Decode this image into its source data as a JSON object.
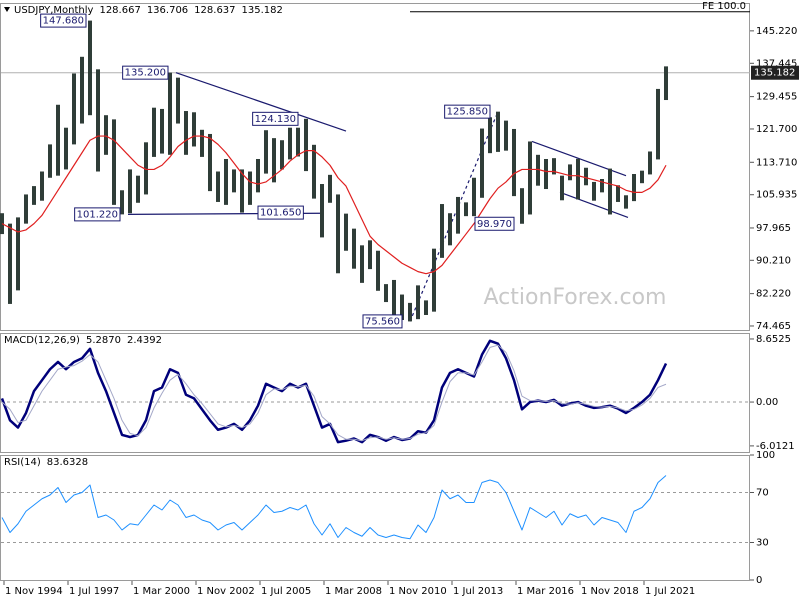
{
  "chart_data": [
    {
      "type": "range-bar",
      "title": "USDJPY,Monthly",
      "header_values": [
        128.667,
        136.706,
        128.637,
        135.182
      ],
      "x": [
        "1994-10",
        "1995-02",
        "1995-06",
        "1995-10",
        "1996-02",
        "1996-06",
        "1996-10",
        "1997-02",
        "1997-06",
        "1997-10",
        "1998-02",
        "1998-06",
        "1998-10",
        "1999-02",
        "1999-06",
        "1999-10",
        "2000-02",
        "2000-06",
        "2000-10",
        "2001-02",
        "2001-06",
        "2001-10",
        "2002-02",
        "2002-06",
        "2002-10",
        "2003-02",
        "2003-06",
        "2003-10",
        "2004-02",
        "2004-06",
        "2004-10",
        "2005-02",
        "2005-06",
        "2005-10",
        "2006-02",
        "2006-06",
        "2006-10",
        "2007-02",
        "2007-06",
        "2007-10",
        "2008-02",
        "2008-06",
        "2008-10",
        "2009-02",
        "2009-06",
        "2009-10",
        "2010-02",
        "2010-06",
        "2010-10",
        "2011-02",
        "2011-06",
        "2011-10",
        "2012-02",
        "2012-06",
        "2012-10",
        "2013-02",
        "2013-06",
        "2013-10",
        "2014-02",
        "2014-06",
        "2014-10",
        "2015-02",
        "2015-06",
        "2015-10",
        "2016-02",
        "2016-06",
        "2016-10",
        "2017-02",
        "2017-06",
        "2017-10",
        "2018-02",
        "2018-06",
        "2018-10",
        "2019-02",
        "2019-06",
        "2019-10",
        "2020-02",
        "2020-06",
        "2020-10",
        "2021-02",
        "2021-06",
        "2021-10",
        "2022-02",
        "2022-06"
      ],
      "xlim": [
        "1994-09",
        "2025-12"
      ],
      "xticks": [
        {
          "value": "1994-11",
          "label": "1 Nov 1994"
        },
        {
          "value": "1997-07",
          "label": "1 Jul 1997"
        },
        {
          "value": "2000-03",
          "label": "1 Mar 2000"
        },
        {
          "value": "2002-11",
          "label": "1 Nov 2002"
        },
        {
          "value": "2005-07",
          "label": "1 Jul 2005"
        },
        {
          "value": "2008-03",
          "label": "1 Mar 2008"
        },
        {
          "value": "2010-11",
          "label": "1 Nov 2010"
        },
        {
          "value": "2013-07",
          "label": "1 Jul 2013"
        },
        {
          "value": "2016-03",
          "label": "1 Mar 2016"
        },
        {
          "value": "2018-11",
          "label": "1 Nov 2018"
        },
        {
          "value": "2021-07",
          "label": "1 Jul 2021"
        }
      ],
      "ylim": [
        73.5,
        151.9
      ],
      "yticks": [
        {
          "value": 145.22,
          "label": "145.220"
        },
        137.445,
        129.455,
        {
          "value": 121.7,
          "label": "121.700"
        },
        {
          "value": 113.71,
          "label": "113.710"
        },
        105.935,
        97.965,
        {
          "value": 90.21,
          "label": "90.210"
        },
        {
          "value": 82.22,
          "label": "82.220"
        },
        74.465
      ],
      "series": [
        {
          "type": "range",
          "color": "#2f3d38",
          "high": [
            101.5,
            99,
            100.5,
            106,
            108,
            111.5,
            118,
            127.5,
            122,
            135,
            139,
            147.68,
            136,
            125,
            124,
            107,
            112,
            110.5,
            118.5,
            126.8,
            126.5,
            135.2,
            134,
            126,
            125.7,
            121.5,
            120.5,
            111.5,
            114.5,
            112,
            112,
            111.5,
            114.5,
            121.4,
            119.5,
            119,
            122,
            122,
            124.13,
            117.9,
            108.5,
            110.7,
            106,
            101.4,
            97.8,
            93.8,
            95,
            92.5,
            84.5,
            85.5,
            82,
            80,
            84.2,
            80.6,
            93,
            103.7,
            101.5,
            105.4,
            104.1,
            110,
            121.8,
            124.5,
            125.85,
            123.7,
            121.7,
            107.5,
            118.7,
            115.5,
            114.5,
            114.7,
            110.5,
            113.2,
            114.55,
            112.4,
            109,
            109.7,
            112.2,
            108.2,
            105.8,
            110.9,
            111.7,
            116.3,
            131.3,
            136.706
          ],
          "low": [
            96.5,
            79.75,
            83,
            99,
            103.5,
            104.5,
            110,
            110.5,
            112,
            118,
            123,
            125,
            111.5,
            115.5,
            103.5,
            101.22,
            101.5,
            104,
            106,
            115,
            115.8,
            115.5,
            123,
            115.5,
            117.5,
            115,
            106.8,
            104.2,
            103.5,
            106.5,
            101.65,
            103.5,
            106.5,
            111,
            108.9,
            112,
            114.4,
            115.1,
            111.6,
            105,
            95.7,
            104,
            87.1,
            92.5,
            88.2,
            84.8,
            88.1,
            82.9,
            80.2,
            76.3,
            75.9,
            75.56,
            76.1,
            77.1,
            77.9,
            90.8,
            93.8,
            96.6,
            100.8,
            100.8,
            105.2,
            115.9,
            116.2,
            116.5,
            105.6,
            98.97,
            101.2,
            108.1,
            107.3,
            110.8,
            104.6,
            109.4,
            104.8,
            108.2,
            104.5,
            106.5,
            101.2,
            104.2,
            102.6,
            104.4,
            108.7,
            110.8,
            114.4,
            128.637
          ]
        },
        {
          "type": "line",
          "color": "#e02020",
          "values": [
            99,
            98,
            97,
            97.5,
            99,
            101,
            104,
            107,
            110,
            113,
            116,
            119,
            120,
            120,
            119,
            117,
            115,
            113,
            112,
            112,
            113,
            115,
            117.5,
            119,
            120,
            120,
            119.5,
            118,
            116,
            113.5,
            111,
            109,
            108.5,
            109,
            110.5,
            112,
            114,
            115.5,
            116.5,
            116.5,
            115,
            113,
            110,
            108,
            104,
            100,
            96,
            94,
            92.5,
            91,
            89.5,
            88.5,
            87.5,
            87,
            87.5,
            89,
            91.5,
            94,
            96.5,
            99,
            102,
            105,
            107.5,
            109,
            111,
            112,
            112,
            112,
            111.5,
            111.5,
            111,
            110.5,
            110.5,
            110,
            109.5,
            109,
            108.5,
            108,
            107,
            106.5,
            106.5,
            107.5,
            109.5,
            113
          ]
        }
      ],
      "last_price": 135.182,
      "fe_level": {
        "from": "2011-10",
        "value": 149.8,
        "label": "FE 100.0"
      },
      "annotations": [
        {
          "x": "1998-08",
          "value": 147.68,
          "label": "147.680",
          "side": "left"
        },
        {
          "x": "2002-01",
          "value": 135.2,
          "label": "135.200",
          "side": "left"
        },
        {
          "x": "2007-06",
          "value": 124.13,
          "label": "124.130",
          "side": "left"
        },
        {
          "x": "2015-06",
          "value": 125.85,
          "label": "125.850",
          "side": "left"
        },
        {
          "x": "2000-01",
          "value": 101.22,
          "label": "101.220",
          "side": "left"
        },
        {
          "x": "2005-01",
          "value": 101.65,
          "label": "101.650",
          "side": "right"
        },
        {
          "x": "2016-06",
          "value": 98.97,
          "label": "98.970",
          "side": "left"
        },
        {
          "x": "2011-10",
          "value": 75.56,
          "label": "75.560",
          "side": "left"
        }
      ],
      "trendlines": [
        {
          "from": [
            "2002-01",
            135.2
          ],
          "to": [
            "2009-02",
            121.2
          ],
          "color": "#1a1a6e",
          "dashed": false
        },
        {
          "from": [
            "2000-01",
            101.22
          ],
          "to": [
            "2008-02",
            101.5
          ],
          "color": "#1a1a6e",
          "dashed": false
        },
        {
          "from": [
            "2016-11",
            118.7
          ],
          "to": [
            "2020-10",
            110.5
          ],
          "color": "#1a1a6e",
          "dashed": false
        },
        {
          "from": [
            "2018-01",
            106.5
          ],
          "to": [
            "2020-11",
            100.5
          ],
          "color": "#1a1a6e",
          "dashed": false
        },
        {
          "from": [
            "2011-10",
            75.56
          ],
          "to": [
            "2015-06",
            125.85
          ],
          "color": "#1a1a6e",
          "dashed": true
        }
      ],
      "watermark": "ActionForex.com"
    },
    {
      "type": "line",
      "title": "MACD(12,26,9)",
      "header_values": [
        {
          "value": 5.287,
          "label": "5.2870"
        },
        2.4392
      ],
      "ylim": [
        -6.85,
        9.47
      ],
      "yticks": [
        8.6525,
        {
          "value": 0,
          "label": "0.00"
        },
        -6.0121
      ],
      "reference_lines": [
        0
      ],
      "series": [
        {
          "color": "#00007a",
          "line_width": 2.5,
          "values": [
            0.5,
            -2.5,
            -3.5,
            -1.5,
            1.5,
            3.0,
            4.5,
            5.5,
            4.5,
            5.5,
            6.0,
            7.3,
            4.0,
            1.5,
            -1.5,
            -4.5,
            -4.8,
            -4.5,
            -2.5,
            1.5,
            2.0,
            4.5,
            4.0,
            1.0,
            0.5,
            -1.0,
            -2.5,
            -3.8,
            -3.5,
            -3.0,
            -3.8,
            -2.5,
            -0.5,
            2.5,
            2.0,
            1.5,
            2.5,
            2.0,
            2.5,
            -0.5,
            -3.5,
            -3.0,
            -5.5,
            -5.3,
            -5.0,
            -5.5,
            -4.5,
            -4.8,
            -5.3,
            -4.8,
            -5.2,
            -5.0,
            -4.0,
            -4.2,
            -2.5,
            2.0,
            4.0,
            4.5,
            4.0,
            3.5,
            6.5,
            8.4,
            8.0,
            6.0,
            3.0,
            -1.0,
            0.0,
            0.2,
            0.0,
            0.3,
            -0.5,
            -0.2,
            0.0,
            -0.5,
            -0.8,
            -0.7,
            -0.5,
            -0.9,
            -1.5,
            -0.8,
            0.0,
            1.0,
            3.0,
            5.287
          ]
        },
        {
          "color": "#a4a8c8",
          "line_width": 1,
          "values": [
            0.0,
            -1.0,
            -2.8,
            -2.5,
            -0.5,
            1.5,
            3.0,
            4.5,
            4.8,
            5.0,
            5.6,
            6.5,
            5.5,
            3.0,
            0.5,
            -2.5,
            -4.3,
            -4.6,
            -3.5,
            -0.8,
            1.2,
            3.0,
            3.8,
            2.5,
            1.0,
            -0.2,
            -1.6,
            -3.0,
            -3.4,
            -3.2,
            -3.5,
            -3.0,
            -1.5,
            1.0,
            1.8,
            1.7,
            2.2,
            2.1,
            2.3,
            0.8,
            -2.0,
            -3.0,
            -4.5,
            -5.1,
            -5.1,
            -5.3,
            -4.9,
            -4.8,
            -5.1,
            -4.9,
            -5.1,
            -5.0,
            -4.4,
            -4.2,
            -3.2,
            0.0,
            2.8,
            4.0,
            4.0,
            3.7,
            5.5,
            7.5,
            7.8,
            6.8,
            4.3,
            0.8,
            0.2,
            0.2,
            0.1,
            0.2,
            -0.2,
            -0.3,
            -0.1,
            -0.3,
            -0.6,
            -0.7,
            -0.6,
            -0.8,
            -1.2,
            -1.0,
            -0.4,
            0.5,
            2.0,
            2.4392
          ]
        }
      ]
    },
    {
      "type": "line",
      "title": "RSI(14)",
      "header_values": [
        83.6328
      ],
      "ylim": [
        0,
        100
      ],
      "yticks": [
        100,
        70,
        30,
        0
      ],
      "reference_lines": [
        70,
        30
      ],
      "series": [
        {
          "color": "#1e90ff",
          "line_width": 1,
          "values": [
            50,
            38,
            45,
            55,
            60,
            65,
            68,
            74,
            62,
            68,
            70,
            76,
            50,
            52,
            48,
            40,
            45,
            44,
            52,
            60,
            56,
            64,
            60,
            50,
            52,
            48,
            46,
            40,
            44,
            46,
            40,
            46,
            52,
            60,
            54,
            55,
            58,
            56,
            60,
            45,
            36,
            45,
            34,
            42,
            38,
            35,
            42,
            36,
            34,
            36,
            34,
            33,
            44,
            38,
            50,
            72,
            65,
            68,
            62,
            62,
            78,
            80,
            78,
            70,
            55,
            40,
            58,
            54,
            50,
            55,
            44,
            53,
            50,
            52,
            44,
            50,
            48,
            46,
            38,
            55,
            58,
            65,
            78,
            83.6328
          ]
        }
      ]
    }
  ]
}
